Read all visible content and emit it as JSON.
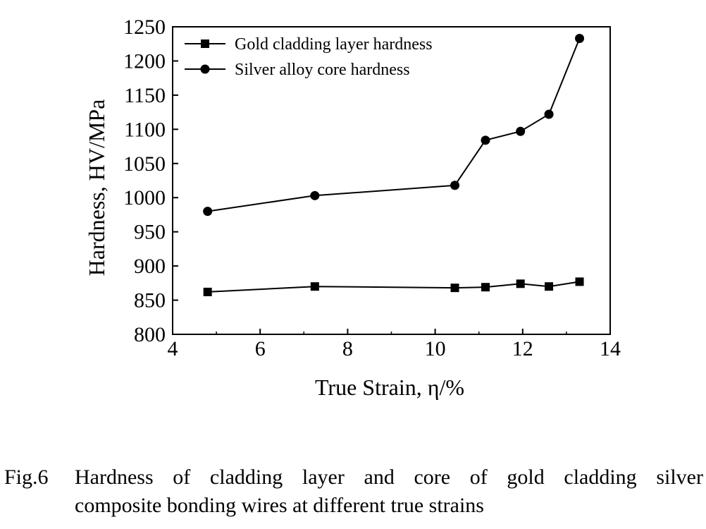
{
  "chart_data": {
    "type": "line",
    "title": "",
    "xlabel": "True Strain, η/%",
    "ylabel": "Hardness, HV/MPa",
    "xlim": [
      4,
      14
    ],
    "ylim": [
      800,
      1250
    ],
    "xticks": [
      4,
      6,
      8,
      10,
      12,
      14
    ],
    "yticks": [
      800,
      850,
      900,
      950,
      1000,
      1050,
      1100,
      1150,
      1200,
      1250
    ],
    "legend_position": "top-left",
    "grid": false,
    "series": [
      {
        "name": "Gold cladding layer hardness",
        "marker": "square",
        "color": "#000000",
        "x": [
          4.8,
          7.25,
          10.45,
          11.15,
          11.95,
          12.6,
          13.3
        ],
        "y": [
          862,
          870,
          868,
          869,
          874,
          870,
          877
        ]
      },
      {
        "name": "Silver alloy core hardness",
        "marker": "circle",
        "color": "#000000",
        "x": [
          4.8,
          7.25,
          10.45,
          11.15,
          11.95,
          12.6,
          13.3
        ],
        "y": [
          980,
          1003,
          1018,
          1084,
          1097,
          1122,
          1233
        ]
      }
    ]
  },
  "caption": {
    "label": "Fig.6",
    "line1": "Hardness of cladding layer and core of gold cladding silver",
    "line2": "composite bonding wires at different true strains"
  }
}
